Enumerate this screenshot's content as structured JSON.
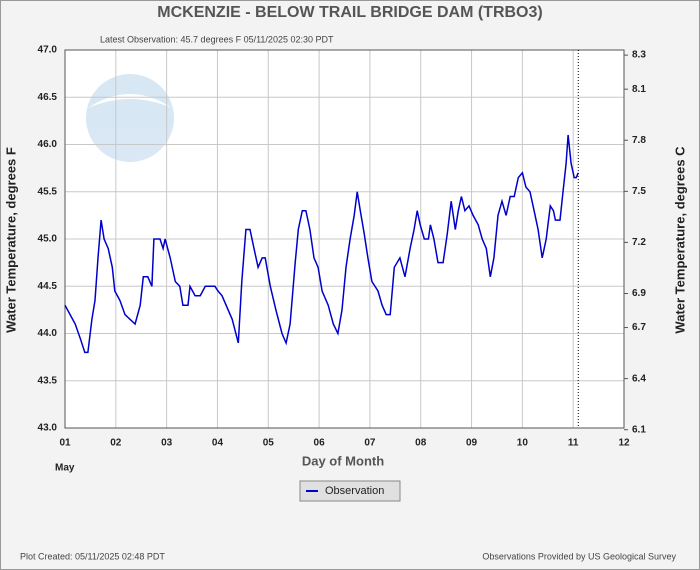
{
  "chart_data": {
    "type": "line",
    "title": "MCKENZIE - BELOW TRAIL BRIDGE DAM  (TRBO3)",
    "subtitle": "Latest Observation: 45.7 degrees F 05/11/2025 02:30 PDT",
    "xlabel": "Day of Month",
    "xlabel_month": "May",
    "ylabel": "Water Temperature, degrees F",
    "y2label": "Water Temperature, degrees C",
    "footer_left": "Plot Created: 05/11/2025 02:48 PDT",
    "footer_right": "Observations Provided by US Geological Survey",
    "legend": "bottom",
    "grid": true,
    "xlim": [
      1,
      12
    ],
    "xticks": [
      {
        "value": 1,
        "label": "01"
      },
      {
        "value": 2,
        "label": "02"
      },
      {
        "value": 3,
        "label": "03"
      },
      {
        "value": 4,
        "label": "04"
      },
      {
        "value": 5,
        "label": "05"
      },
      {
        "value": 6,
        "label": "06"
      },
      {
        "value": 7,
        "label": "07"
      },
      {
        "value": 8,
        "label": "08"
      },
      {
        "value": 9,
        "label": "09"
      },
      {
        "value": 10,
        "label": "10"
      },
      {
        "value": 11,
        "label": "11"
      },
      {
        "value": 12,
        "label": "12"
      }
    ],
    "ylim": [
      43,
      47
    ],
    "yticks": [
      {
        "value": 43,
        "label": "43.0"
      },
      43.5,
      {
        "value": 44,
        "label": "44.0"
      },
      44.5,
      {
        "value": 45,
        "label": "45.0"
      },
      45.5,
      {
        "value": 46,
        "label": "46.0"
      },
      46.5,
      {
        "value": 47,
        "label": "47.0"
      }
    ],
    "y2lim": [
      6.11,
      8.33
    ],
    "y2ticks": [
      6.1,
      6.4,
      6.7,
      6.9,
      7.2,
      7.5,
      7.8,
      8.1,
      8.3
    ],
    "x": [
      1.0,
      1.1,
      1.2,
      1.3,
      1.39,
      1.45,
      1.53,
      1.59,
      1.65,
      1.71,
      1.77,
      1.85,
      1.93,
      1.98,
      2.08,
      2.18,
      2.28,
      2.38,
      2.48,
      2.54,
      2.63,
      2.71,
      2.75,
      2.87,
      2.93,
      2.97,
      3.07,
      3.17,
      3.26,
      3.32,
      3.42,
      3.46,
      3.56,
      3.66,
      3.76,
      3.95,
      4.01,
      4.09,
      4.17,
      4.29,
      4.41,
      4.48,
      4.56,
      4.64,
      4.72,
      4.8,
      4.88,
      4.94,
      5.04,
      5.15,
      5.27,
      5.35,
      5.43,
      5.53,
      5.59,
      5.67,
      5.74,
      5.82,
      5.9,
      5.98,
      6.06,
      6.18,
      6.28,
      6.37,
      6.45,
      6.53,
      6.61,
      6.69,
      6.75,
      6.81,
      6.89,
      6.96,
      7.04,
      7.16,
      7.24,
      7.32,
      7.4,
      7.48,
      7.59,
      7.69,
      7.79,
      7.87,
      7.93,
      7.99,
      8.07,
      8.15,
      8.19,
      8.26,
      8.34,
      8.44,
      8.52,
      8.6,
      8.68,
      8.74,
      8.8,
      8.87,
      8.95,
      9.03,
      9.13,
      9.21,
      9.29,
      9.37,
      9.44,
      9.52,
      9.6,
      9.68,
      9.76,
      9.84,
      9.92,
      10.0,
      10.07,
      10.15,
      10.23,
      10.31,
      10.39,
      10.47,
      10.55,
      10.61,
      10.65,
      10.74,
      10.8,
      10.86,
      10.9,
      10.96,
      11.02,
      11.06,
      11.1
    ],
    "series": [
      {
        "name": "Observation",
        "color": "#0000cc",
        "values": [
          44.3,
          44.2,
          44.1,
          43.95,
          43.8,
          43.8,
          44.15,
          44.35,
          44.8,
          45.2,
          45.0,
          44.9,
          44.7,
          44.45,
          44.35,
          44.2,
          44.15,
          44.1,
          44.3,
          44.6,
          44.6,
          44.5,
          45.0,
          45.0,
          44.9,
          45.0,
          44.8,
          44.55,
          44.5,
          44.3,
          44.3,
          44.5,
          44.4,
          44.4,
          44.5,
          44.5,
          44.45,
          44.4,
          44.3,
          44.15,
          43.9,
          44.55,
          45.1,
          45.1,
          44.9,
          44.7,
          44.8,
          44.8,
          44.5,
          44.25,
          44.0,
          43.9,
          44.1,
          44.75,
          45.1,
          45.3,
          45.3,
          45.1,
          44.8,
          44.7,
          44.45,
          44.3,
          44.1,
          44.0,
          44.25,
          44.7,
          45.0,
          45.25,
          45.5,
          45.3,
          45.05,
          44.8,
          44.55,
          44.45,
          44.3,
          44.2,
          44.2,
          44.7,
          44.8,
          44.6,
          44.9,
          45.1,
          45.3,
          45.15,
          45.0,
          45.0,
          45.15,
          45.0,
          44.75,
          44.75,
          45.05,
          45.4,
          45.1,
          45.3,
          45.45,
          45.3,
          45.35,
          45.25,
          45.15,
          45.0,
          44.9,
          44.6,
          44.8,
          45.25,
          45.4,
          45.25,
          45.45,
          45.45,
          45.65,
          45.7,
          45.55,
          45.5,
          45.3,
          45.1,
          44.8,
          45.0,
          45.35,
          45.3,
          45.2,
          45.2,
          45.5,
          45.8,
          46.1,
          45.8,
          45.65,
          45.65,
          45.7
        ]
      }
    ]
  }
}
